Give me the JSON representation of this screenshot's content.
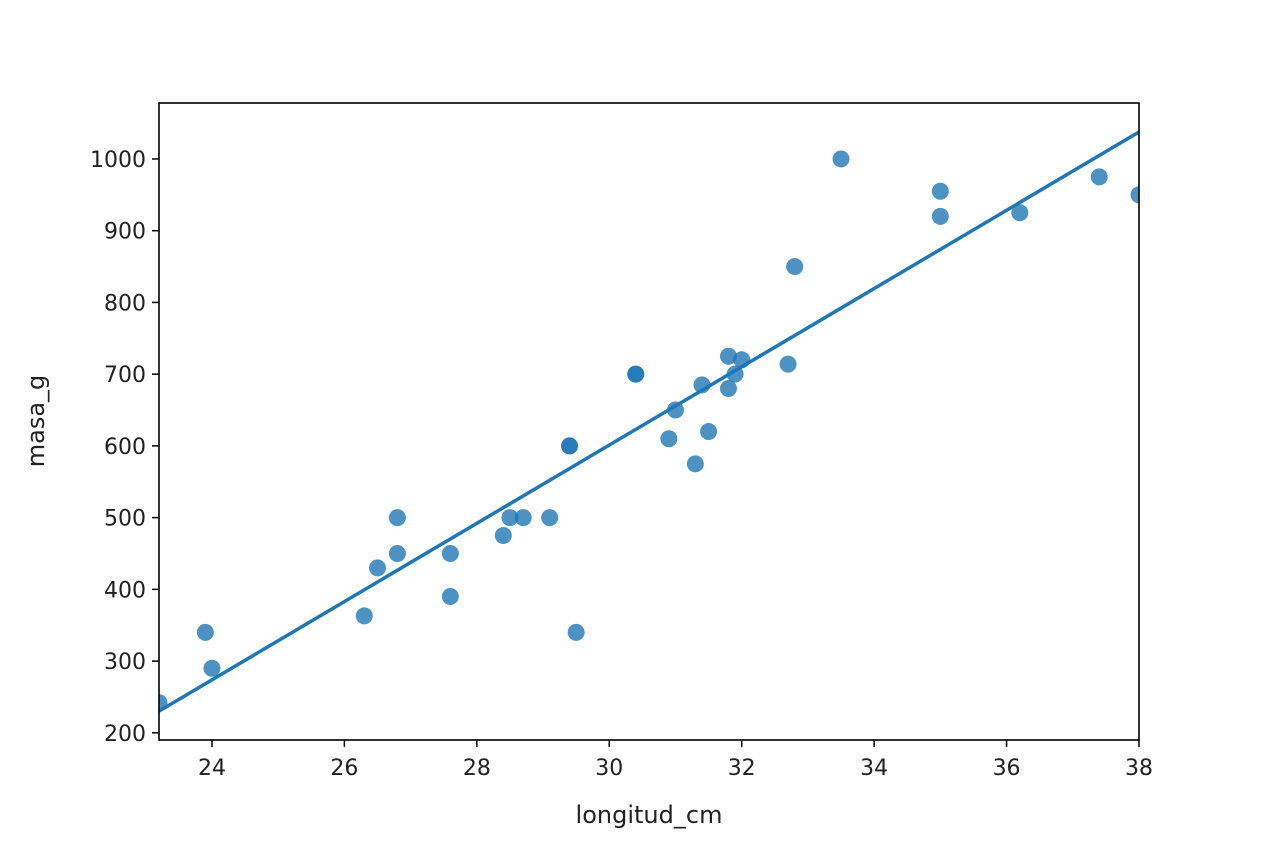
{
  "chart_data": {
    "type": "scatter",
    "xlabel": "longitud_cm",
    "ylabel": "masa_g",
    "xlim": [
      23.2,
      38
    ],
    "ylim": [
      190,
      1078
    ],
    "xticks": [
      24,
      26,
      28,
      30,
      32,
      34,
      36,
      38
    ],
    "yticks": [
      200,
      300,
      400,
      500,
      600,
      700,
      800,
      900,
      1000
    ],
    "grid": false,
    "regression_line": true,
    "color": "#1f77b4",
    "x": [
      23.2,
      24,
      23.9,
      26.3,
      26.5,
      26.8,
      26.8,
      27.6,
      27.6,
      28.5,
      28.4,
      28.7,
      29.1,
      29.5,
      29.4,
      29.4,
      30.4,
      30.4,
      30.9,
      31,
      31.3,
      31.4,
      31.5,
      31.8,
      31.9,
      31.8,
      32,
      32.7,
      32.8,
      33.5,
      35,
      35,
      36.2,
      37.4,
      38
    ],
    "y": [
      242,
      290,
      340,
      363,
      430,
      450,
      500,
      390,
      450,
      500,
      475,
      500,
      500,
      340,
      600,
      600,
      700,
      700,
      610,
      650,
      575,
      685,
      620,
      680,
      700,
      725,
      720,
      714,
      850,
      1000,
      920,
      955,
      925,
      975,
      950
    ]
  }
}
